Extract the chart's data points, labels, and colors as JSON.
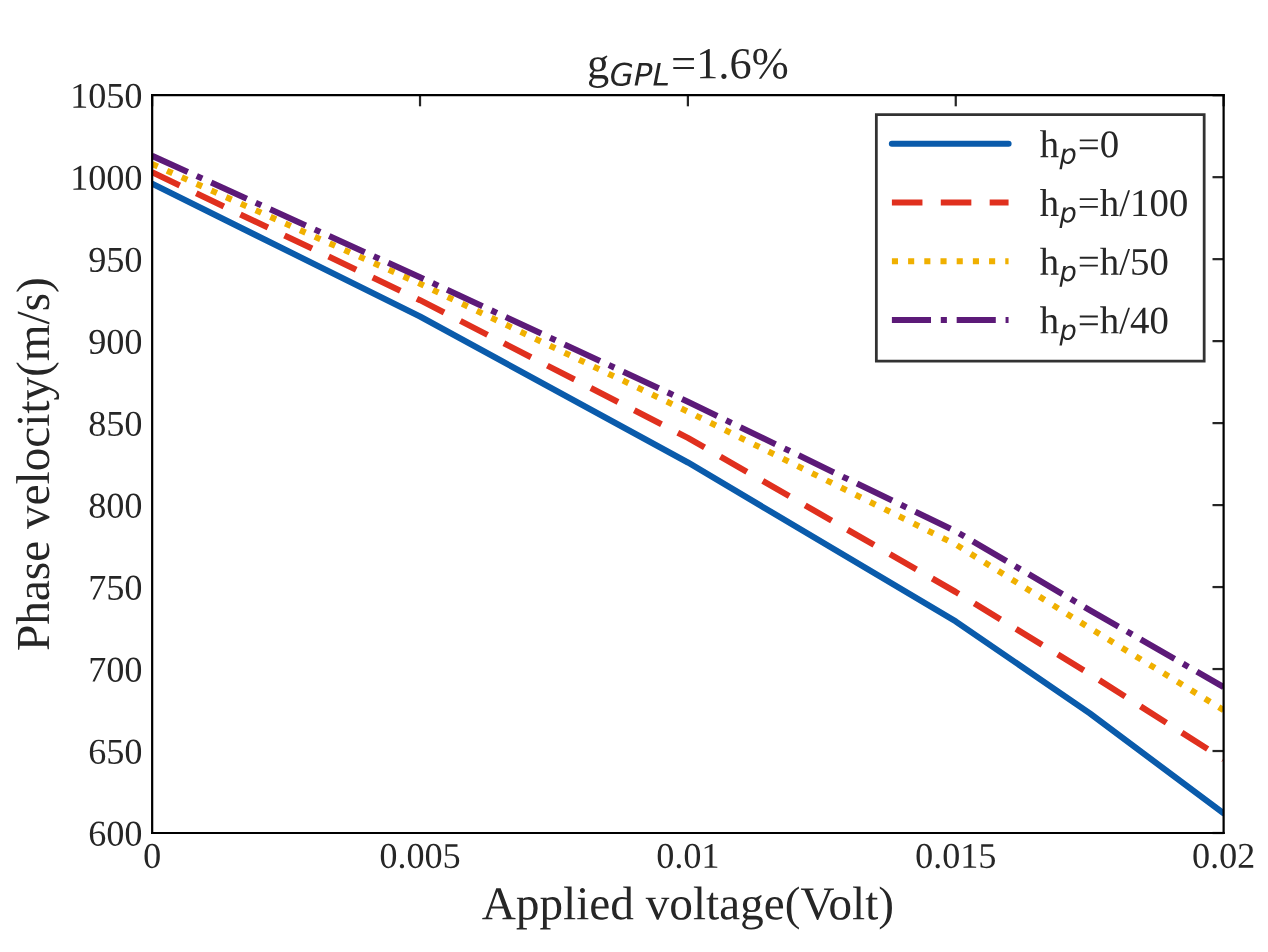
{
  "chart_data": {
    "type": "line",
    "title": "g$_{GPL}$=1.6%",
    "xlabel": "Applied voltage(Volt)",
    "ylabel": "Phase velocity(m/s)",
    "x": [
      0,
      0.005,
      0.01,
      0.015,
      0.0175,
      0.02
    ],
    "series": [
      {
        "name": "h$_{p}$=0",
        "color": "#0a5bab",
        "line_style": "solid",
        "values": [
          996,
          915,
          826,
          729,
          673,
          612
        ]
      },
      {
        "name": "h$_{p}$=h/100",
        "color": "#e0301e",
        "line_style": "dashed",
        "values": [
          1003,
          925,
          841,
          747,
          697,
          645
        ]
      },
      {
        "name": "h$_{p}$=h/50",
        "color": "#f0b000",
        "line_style": "dotted",
        "values": [
          1008,
          935,
          857,
          776,
          725,
          675
        ]
      },
      {
        "name": "h$_{p}$=h/40",
        "color": "#5c1a78",
        "line_style": "dashdot",
        "values": [
          1013,
          939,
          863,
          784,
          736,
          689
        ]
      }
    ],
    "xlim": [
      0,
      0.02
    ],
    "xticks": [
      0,
      0.005,
      0.01,
      0.015,
      0.02
    ],
    "ylim": [
      600,
      1050
    ],
    "yticks": [
      600,
      650,
      700,
      750,
      800,
      850,
      900,
      950,
      1000,
      1050
    ],
    "grid": false,
    "legend": "top right"
  }
}
